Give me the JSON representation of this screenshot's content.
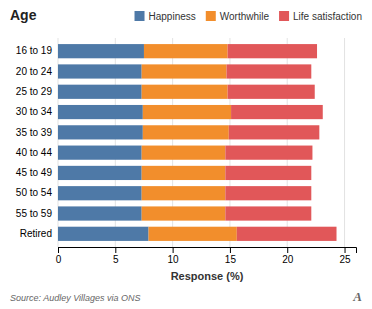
{
  "chart_data": {
    "type": "bar",
    "title": "Age",
    "xlabel": "Response (%)",
    "orientation": "horizontal",
    "stacked": true,
    "grid": true,
    "legend": "upper right",
    "categories": [
      "16 to 19",
      "20 to 24",
      "25 to 29",
      "30 to 34",
      "35 to 39",
      "40 to 44",
      "45 to 49",
      "50 to 54",
      "55 to 59",
      "Retired"
    ],
    "series": [
      {
        "name": "Happiness",
        "values": [
          7.5,
          7.3,
          7.3,
          7.4,
          7.4,
          7.3,
          7.3,
          7.3,
          7.3,
          7.9
        ]
      },
      {
        "name": "Worthwhile",
        "values": [
          7.3,
          7.4,
          7.5,
          7.7,
          7.5,
          7.3,
          7.3,
          7.3,
          7.3,
          7.7
        ]
      },
      {
        "name": "Life satisfaction",
        "values": [
          7.8,
          7.4,
          7.6,
          8.0,
          7.9,
          7.6,
          7.5,
          7.5,
          7.5,
          8.7
        ]
      }
    ],
    "xlim": [
      0,
      26
    ],
    "xticks": [
      0,
      5,
      10,
      15,
      20,
      25
    ],
    "annotations": [
      "Source: Audley Villages via ONS",
      "A"
    ]
  }
}
